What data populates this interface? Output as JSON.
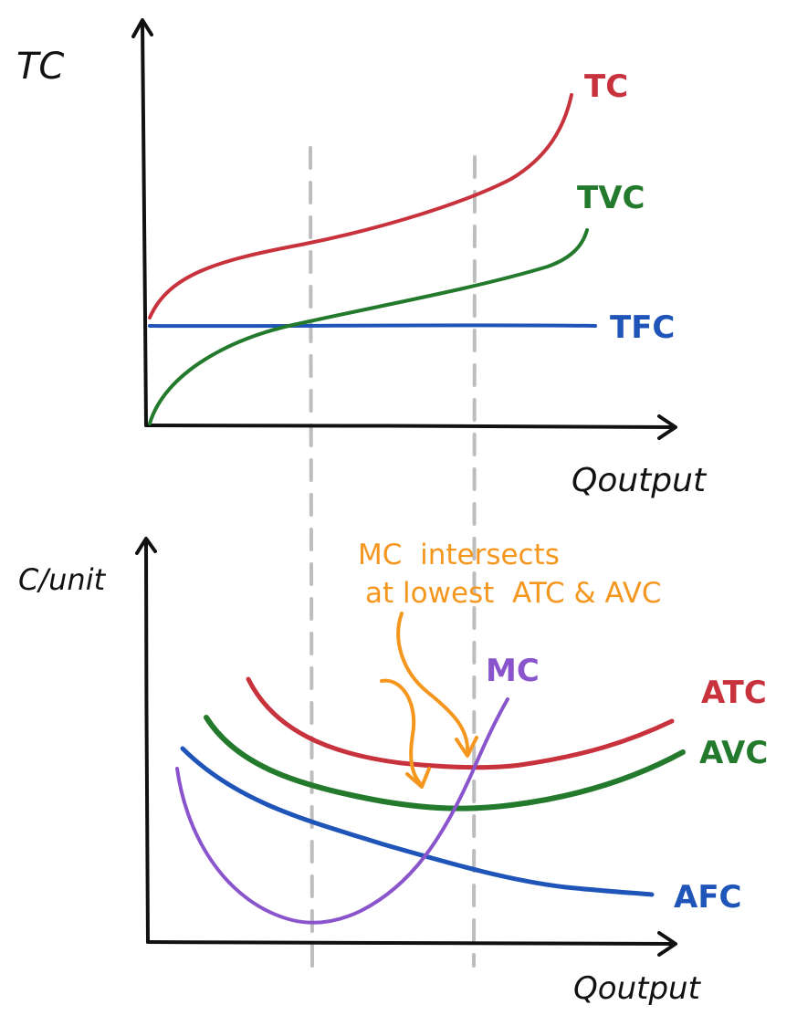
{
  "top_chart": {
    "ylabel": "TC",
    "xlabel": "Qoutput",
    "curves": {
      "tc": {
        "label": "TC",
        "color": "#c8323c"
      },
      "tvc": {
        "label": "TVC",
        "color": "#237a2c"
      },
      "tfc": {
        "label": "TFC",
        "color": "#1f55b8"
      }
    }
  },
  "bottom_chart": {
    "ylabel": "C/unit",
    "xlabel": "Qoutput",
    "annotation": {
      "line1": "MC  intersects",
      "line2": "at lowest  ATC & AVC",
      "color": "#f5971f"
    },
    "curves": {
      "mc": {
        "label": "MC",
        "color": "#8a55cc"
      },
      "atc": {
        "label": "ATC",
        "color": "#c8323c"
      },
      "avc": {
        "label": "AVC",
        "color": "#237a2c"
      },
      "afc": {
        "label": "AFC",
        "color": "#1f55b8"
      }
    }
  },
  "guide_color": "#bdbdbd"
}
